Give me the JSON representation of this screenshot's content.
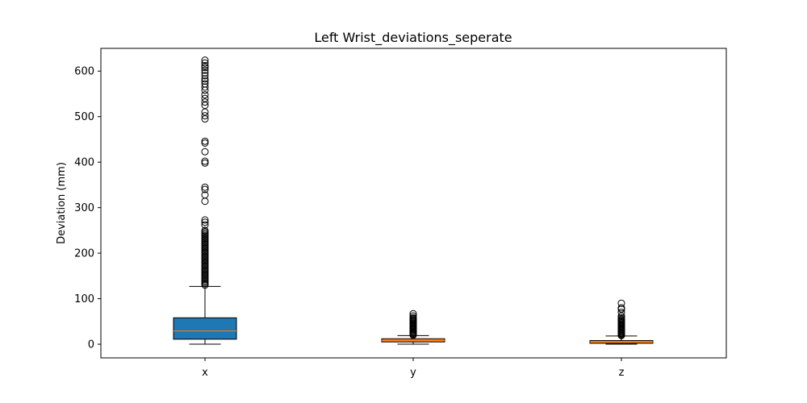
{
  "chart_data": {
    "type": "box",
    "title": "Left Wrist_deviations_seperate",
    "xlabel": "",
    "ylabel": "Deviation (mm)",
    "ylim": [
      -30,
      650
    ],
    "yticks": [
      0,
      100,
      200,
      300,
      400,
      500,
      600
    ],
    "categories": [
      "x",
      "y",
      "z"
    ],
    "grid": false,
    "box_colors": [
      "#1f77b4",
      "#ff7f0e",
      "#ff7f0e"
    ],
    "median_color": "#ff7f0e",
    "boxes": [
      {
        "category": "x",
        "whisker_low": 0,
        "q1": 11,
        "median": 29,
        "q3": 58,
        "whisker_high": 127,
        "outliers": [
          130,
          133,
          136,
          139,
          142,
          145,
          148,
          151,
          154,
          157,
          160,
          163,
          166,
          169,
          172,
          175,
          178,
          181,
          184,
          187,
          190,
          193,
          196,
          199,
          202,
          205,
          208,
          211,
          214,
          217,
          220,
          223,
          226,
          229,
          232,
          235,
          238,
          241,
          244,
          247,
          250,
          262,
          268,
          273,
          314,
          328,
          340,
          345,
          398,
          402,
          423,
          442,
          446,
          495,
          502,
          510,
          525,
          532,
          540,
          548,
          558,
          565,
          572,
          578,
          583,
          590,
          596,
          602,
          608,
          612,
          618,
          624
        ]
      },
      {
        "category": "y",
        "whisker_low": 0,
        "q1": 5,
        "median": 8,
        "q3": 12,
        "whisker_high": 19,
        "outliers": [
          20,
          22,
          24,
          26,
          28,
          30,
          32,
          34,
          36,
          38,
          40,
          42,
          44,
          46,
          48,
          50,
          52,
          54,
          56,
          58,
          62,
          67
        ]
      },
      {
        "category": "z",
        "whisker_low": 0,
        "q1": 2,
        "median": 5,
        "q3": 8,
        "whisker_high": 18,
        "outliers": [
          19,
          21,
          23,
          25,
          27,
          29,
          31,
          33,
          35,
          37,
          39,
          41,
          43,
          45,
          47,
          49,
          51,
          53,
          55,
          58,
          62,
          70,
          77,
          80,
          90
        ]
      }
    ]
  }
}
